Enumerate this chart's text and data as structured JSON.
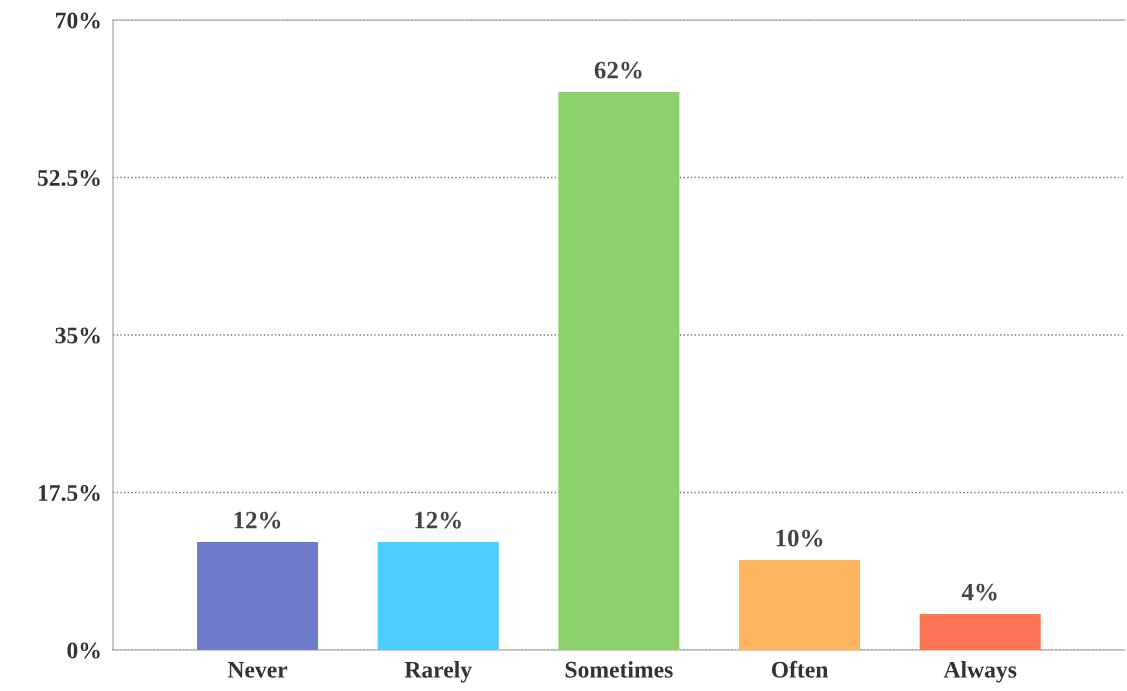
{
  "chart_data": {
    "type": "bar",
    "categories": [
      "Never",
      "Rarely",
      "Sometimes",
      "Often",
      "Always"
    ],
    "values": [
      12,
      12,
      62,
      10,
      4
    ],
    "colors": [
      "#717bcc",
      "#4dcdfe",
      "#8ed16c",
      "#feb661",
      "#fc7556"
    ],
    "value_labels": [
      "12%",
      "12%",
      "62%",
      "10%",
      "4%"
    ],
    "ylim": [
      0,
      70
    ],
    "yticks": [
      {
        "value": 0,
        "label": "0%"
      },
      {
        "value": 17.5,
        "label": "17.5%"
      },
      {
        "value": 35,
        "label": "35%"
      },
      {
        "value": 52.5,
        "label": "52.5%"
      },
      {
        "value": 70,
        "label": "70%"
      }
    ],
    "grid": "y",
    "legend": false
  }
}
